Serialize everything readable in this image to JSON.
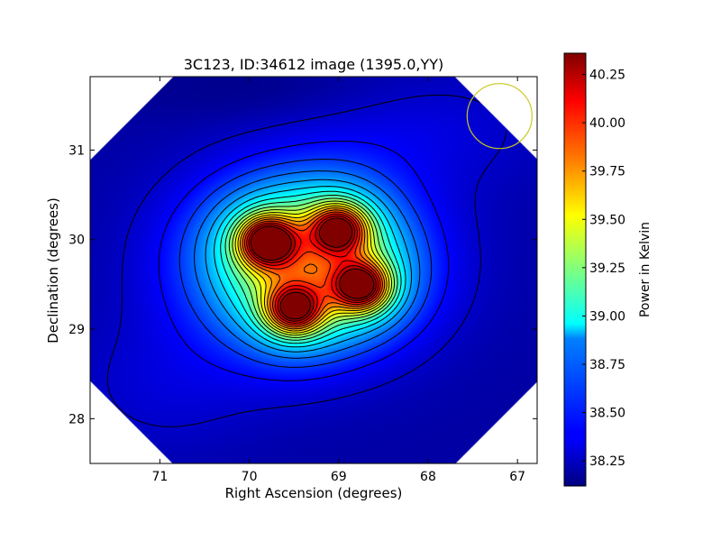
{
  "chart_data": {
    "type": "heatmap",
    "title": "3C123, ID:34612 image (1395.0,YY)",
    "xlabel": "Right Ascension (degrees)",
    "ylabel": "Declination (degrees)",
    "x_ticks": [
      "71",
      "70",
      "69",
      "68",
      "67"
    ],
    "y_ticks": [
      "28",
      "29",
      "30",
      "31"
    ],
    "x_tick_values": [
      71,
      70,
      69,
      68,
      67
    ],
    "y_tick_values": [
      28,
      29,
      30,
      31
    ],
    "xlim": [
      71.78,
      66.78
    ],
    "ylim": [
      27.5,
      31.82
    ],
    "x_inverted": true,
    "colorbar": {
      "label": "Power in Kelvin",
      "range": [
        38.12,
        40.36
      ],
      "ticks": [
        "38.25",
        "38.50",
        "38.75",
        "39.00",
        "39.25",
        "39.50",
        "39.75",
        "40.00",
        "40.25"
      ],
      "tick_values": [
        38.25,
        38.5,
        38.75,
        39.0,
        39.25,
        39.5,
        39.75,
        40.0,
        40.25
      ],
      "colormap": "jet"
    },
    "sources": [
      {
        "ra": 69.8,
        "dec": 29.98,
        "peak_kelvin": 40.36
      },
      {
        "ra": 69.0,
        "dec": 30.12,
        "peak_kelvin": 40.15
      },
      {
        "ra": 68.75,
        "dec": 29.48,
        "peak_kelvin": 40.3
      },
      {
        "ra": 69.5,
        "dec": 29.22,
        "peak_kelvin": 40.2
      }
    ],
    "beam_circle": {
      "ra": 67.2,
      "dec": 31.38,
      "color": "#c8c820"
    },
    "contours": true,
    "grid": false
  }
}
